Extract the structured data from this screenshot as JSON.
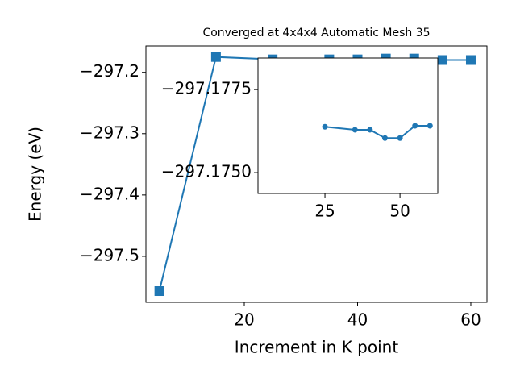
{
  "chart_data": [
    {
      "type": "line",
      "title": "Converged at 4x4x4 Automatic Mesh 35",
      "x_label": "Increment in K point",
      "y_label": "Energy (eV)",
      "x": [
        5,
        15,
        25,
        35,
        40,
        45,
        50,
        55,
        60
      ],
      "series": [
        {
          "color": "#1f77b4",
          "marker": "square",
          "values": [
            -297.5566,
            -297.175,
            -297.1789,
            -297.1789,
            -297.1789,
            -297.1776,
            -297.1776,
            -297.18,
            -297.18
          ]
        }
      ],
      "xlim": [
        2.63,
        62.85
      ],
      "ylim": [
        -297.575,
        -297.157
      ],
      "xticks": [
        20,
        40,
        60
      ],
      "yticks": [
        {
          "value": -297.5,
          "label": "−297.5"
        },
        {
          "value": -297.4,
          "label": "−297.4"
        },
        {
          "value": -297.3,
          "label": "−297.3"
        },
        {
          "value": -297.2,
          "label": "−297.2"
        }
      ]
    },
    {
      "type": "line",
      "x": [
        25,
        35,
        40,
        45,
        50,
        55,
        60
      ],
      "series": [
        {
          "color": "#1f77b4",
          "marker": "circle",
          "values": [
            -297.17638,
            -297.17629,
            -297.17629,
            -297.17604,
            -297.17604,
            -297.17641,
            -297.17641
          ]
        }
      ],
      "xlim": [
        2.69,
        62.6
      ],
      "ylim": [
        -297.17437,
        -297.17845
      ],
      "xticks": [
        25,
        50
      ],
      "yticks": [
        {
          "value": -297.1775,
          "label": "−297.1775"
        },
        {
          "value": -297.175,
          "label": "−297.1750"
        }
      ]
    }
  ]
}
